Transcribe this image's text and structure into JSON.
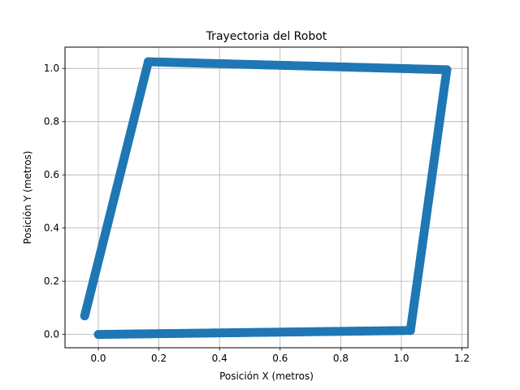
{
  "chart_data": {
    "type": "scatter",
    "title": "Trayectoria del Robot",
    "xlabel": "Posición X (metros)",
    "ylabel": "Posición Y (metros)",
    "xlim": [
      -0.11,
      1.22
    ],
    "ylim": [
      -0.05,
      1.08
    ],
    "xticks": [
      0.0,
      0.2,
      0.4,
      0.6,
      0.8,
      1.0,
      1.2
    ],
    "xtick_labels": [
      "0.0",
      "0.2",
      "0.4",
      "0.6",
      "0.8",
      "1.0",
      "1.2"
    ],
    "yticks": [
      0.0,
      0.2,
      0.4,
      0.6,
      0.8,
      1.0
    ],
    "ytick_labels": [
      "0.0",
      "0.2",
      "0.4",
      "0.6",
      "0.8",
      "1.0"
    ],
    "grid": true,
    "series_color": "#1f77b4",
    "path_vertices": [
      {
        "x": 0.0,
        "y": 0.0
      },
      {
        "x": 1.03,
        "y": 0.015
      },
      {
        "x": 1.15,
        "y": 0.995
      },
      {
        "x": 0.165,
        "y": 1.025
      },
      {
        "x": -0.045,
        "y": 0.07
      }
    ]
  }
}
